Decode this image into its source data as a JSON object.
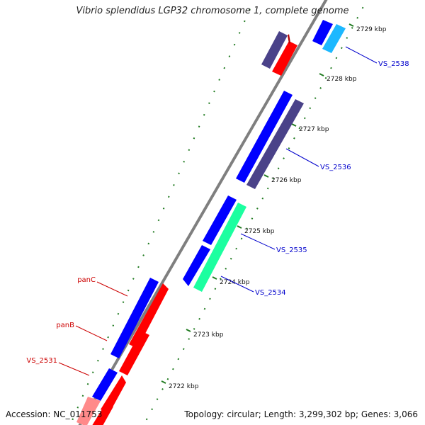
{
  "title": "Vibrio splendidus LGP32 chromosome 1, complete genome",
  "accession_text": "Accession: NC_011753",
  "summary_text": "Topology: circular; Length: 3,299,302 bp; Genes: 3,066",
  "colors": {
    "backbone": "#808080",
    "tick": "#1f7a1f",
    "label_blue": "#0000cc",
    "label_red": "#cc0000",
    "kbp": "#111111"
  },
  "ticks": [
    "2722 kbp",
    "2723 kbp",
    "2724 kbp",
    "2725 kbp",
    "2726 kbp",
    "2727 kbp",
    "2728 kbp",
    "2729 kbp"
  ],
  "gene_labels": [
    {
      "name": "VS_2538",
      "color": "label_blue"
    },
    {
      "name": "VS_2536",
      "color": "label_blue"
    },
    {
      "name": "VS_2535",
      "color": "label_blue"
    },
    {
      "name": "VS_2534",
      "color": "label_blue"
    },
    {
      "name": "panC",
      "color": "label_red"
    },
    {
      "name": "panB",
      "color": "label_red"
    },
    {
      "name": "VS_2531",
      "color": "label_red"
    }
  ]
}
